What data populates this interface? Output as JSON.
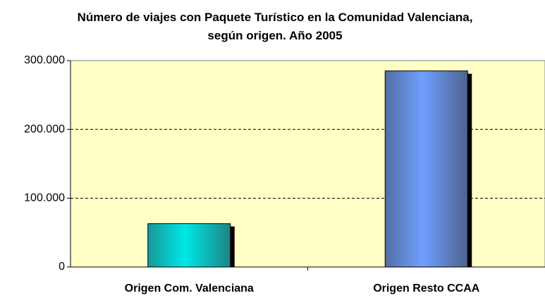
{
  "chart_data": {
    "type": "bar",
    "title": "Número de viajes con Paquete Turístico en la Comunidad Valenciana, según origen. Año 2005",
    "categories": [
      "Origen Com. Valenciana",
      "Origen Resto CCAA"
    ],
    "values": [
      63000,
      285000
    ],
    "colors": [
      "#00e8e8",
      "#6f9fff"
    ],
    "ylim": [
      0,
      300000
    ],
    "yticks": [
      0,
      {
        "value": 100000,
        "label": "100.000"
      },
      {
        "value": 200000,
        "label": "200.000"
      },
      {
        "value": 300000,
        "label": "300.000"
      }
    ],
    "grid": true
  }
}
